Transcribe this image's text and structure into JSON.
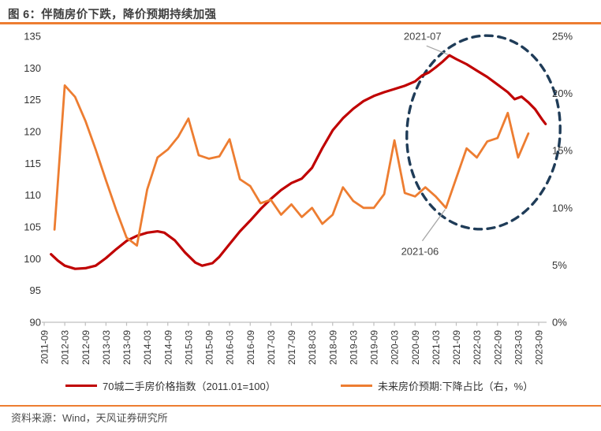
{
  "header": {
    "title": "图 6：伴随房价下跌，降价预期持续加强"
  },
  "footer": {
    "source": "资料来源：Wind，天风证券研究所"
  },
  "colors": {
    "index_line": "#C00000",
    "expectation_line": "#ED7D31",
    "ellipse": "#1F3C58",
    "accent_rule": "#ED7D31",
    "axis_line": "#BFBFBF",
    "axis_text": "#333333",
    "leader_line": "#A6A6A6"
  },
  "legend": {
    "items": [
      {
        "label": "70城二手房价格指数（2011.01=100）"
      },
      {
        "label": "未来房价预期:下降占比（右，%）"
      }
    ]
  },
  "chart_data": {
    "type": "line",
    "title": "图 6：伴随房价下跌，降价预期持续加强",
    "left_axis": {
      "min": 90,
      "max": 135,
      "step": 5,
      "tick_labels": [
        "135",
        "130",
        "125",
        "120",
        "115",
        "110",
        "105",
        "100",
        "95",
        "90"
      ]
    },
    "right_axis": {
      "min": 0,
      "max": 25,
      "step": 5,
      "tick_labels": [
        "25%",
        "20%",
        "15%",
        "10%",
        "5%",
        "0%"
      ]
    },
    "x_ticks": [
      "2011-09",
      "2012-03",
      "2012-09",
      "2013-03",
      "2013-09",
      "2014-03",
      "2014-09",
      "2015-03",
      "2015-09",
      "2016-03",
      "2016-09",
      "2017-03",
      "2017-09",
      "2018-03",
      "2018-09",
      "2019-03",
      "2019-09",
      "2020-03",
      "2020-09",
      "2021-03",
      "2021-09",
      "2022-03",
      "2022-09",
      "2023-03",
      "2023-09"
    ],
    "grid": "off",
    "legend_position": "bottom",
    "series": [
      {
        "name": "70城二手房价格指数（2011.01=100）",
        "axis": "left",
        "color": "#C00000",
        "points": [
          [
            "2011-11",
            100.7
          ],
          [
            "2012-01",
            99.7
          ],
          [
            "2012-03",
            98.9
          ],
          [
            "2012-06",
            98.4
          ],
          [
            "2012-09",
            98.5
          ],
          [
            "2012-12",
            98.9
          ],
          [
            "2013-03",
            100.1
          ],
          [
            "2013-06",
            101.5
          ],
          [
            "2013-09",
            102.8
          ],
          [
            "2013-12",
            103.6
          ],
          [
            "2014-03",
            104.1
          ],
          [
            "2014-06",
            104.3
          ],
          [
            "2014-08",
            104.1
          ],
          [
            "2014-11",
            102.9
          ],
          [
            "2015-02",
            101.0
          ],
          [
            "2015-05",
            99.4
          ],
          [
            "2015-07",
            98.9
          ],
          [
            "2015-10",
            99.3
          ],
          [
            "2015-12",
            100.3
          ],
          [
            "2016-03",
            102.3
          ],
          [
            "2016-06",
            104.3
          ],
          [
            "2016-09",
            106.0
          ],
          [
            "2016-12",
            107.8
          ],
          [
            "2017-03",
            109.4
          ],
          [
            "2017-06",
            110.8
          ],
          [
            "2017-09",
            111.9
          ],
          [
            "2017-12",
            112.6
          ],
          [
            "2018-03",
            114.3
          ],
          [
            "2018-06",
            117.4
          ],
          [
            "2018-09",
            120.2
          ],
          [
            "2018-12",
            122.1
          ],
          [
            "2019-03",
            123.6
          ],
          [
            "2019-06",
            124.8
          ],
          [
            "2019-09",
            125.6
          ],
          [
            "2019-12",
            126.2
          ],
          [
            "2020-03",
            126.7
          ],
          [
            "2020-06",
            127.2
          ],
          [
            "2020-09",
            127.9
          ],
          [
            "2020-11",
            128.8
          ],
          [
            "2021-01",
            129.3
          ],
          [
            "2021-03",
            130.1
          ],
          [
            "2021-05",
            131.0
          ],
          [
            "2021-07",
            132.0
          ],
          [
            "2021-09",
            131.4
          ],
          [
            "2021-12",
            130.6
          ],
          [
            "2022-03",
            129.6
          ],
          [
            "2022-06",
            128.6
          ],
          [
            "2022-09",
            127.4
          ],
          [
            "2022-12",
            126.2
          ],
          [
            "2023-02",
            125.1
          ],
          [
            "2023-04",
            125.5
          ],
          [
            "2023-06",
            124.6
          ],
          [
            "2023-08",
            123.5
          ],
          [
            "2023-10",
            121.9
          ],
          [
            "2023-11",
            121.2
          ]
        ]
      },
      {
        "name": "未来房价预期:下降占比（右，%）",
        "axis": "right",
        "color": "#ED7D31",
        "points": [
          [
            "2011-12",
            8.1
          ],
          [
            "2012-03",
            20.7
          ],
          [
            "2012-06",
            19.7
          ],
          [
            "2012-09",
            17.6
          ],
          [
            "2012-12",
            15.1
          ],
          [
            "2013-03",
            12.4
          ],
          [
            "2013-06",
            9.8
          ],
          [
            "2013-09",
            7.4
          ],
          [
            "2013-12",
            6.7
          ],
          [
            "2014-03",
            11.6
          ],
          [
            "2014-06",
            14.4
          ],
          [
            "2014-09",
            15.1
          ],
          [
            "2014-12",
            16.2
          ],
          [
            "2015-03",
            17.8
          ],
          [
            "2015-06",
            14.6
          ],
          [
            "2015-09",
            14.3
          ],
          [
            "2015-12",
            14.5
          ],
          [
            "2016-03",
            16.0
          ],
          [
            "2016-06",
            12.5
          ],
          [
            "2016-09",
            11.9
          ],
          [
            "2016-12",
            10.4
          ],
          [
            "2017-03",
            10.7
          ],
          [
            "2017-06",
            9.4
          ],
          [
            "2017-09",
            10.3
          ],
          [
            "2017-12",
            9.2
          ],
          [
            "2018-03",
            10.0
          ],
          [
            "2018-06",
            8.6
          ],
          [
            "2018-09",
            9.4
          ],
          [
            "2018-12",
            11.8
          ],
          [
            "2019-03",
            10.6
          ],
          [
            "2019-06",
            10.0
          ],
          [
            "2019-09",
            10.0
          ],
          [
            "2019-12",
            11.2
          ],
          [
            "2020-03",
            15.9
          ],
          [
            "2020-06",
            11.3
          ],
          [
            "2020-09",
            11.0
          ],
          [
            "2020-12",
            11.8
          ],
          [
            "2021-03",
            11.0
          ],
          [
            "2021-06",
            10.0
          ],
          [
            "2021-09",
            12.6
          ],
          [
            "2021-12",
            15.2
          ],
          [
            "2022-03",
            14.4
          ],
          [
            "2022-06",
            15.8
          ],
          [
            "2022-09",
            16.1
          ],
          [
            "2022-12",
            18.3
          ],
          [
            "2023-03",
            14.4
          ],
          [
            "2023-06",
            16.5
          ]
        ]
      }
    ],
    "annotations": [
      {
        "label": "2021-07",
        "series": 0,
        "x": "2021-07",
        "placement": "above"
      },
      {
        "label": "2021-06",
        "series": 1,
        "x": "2021-06",
        "placement": "below"
      }
    ],
    "highlight_ellipse": true
  }
}
